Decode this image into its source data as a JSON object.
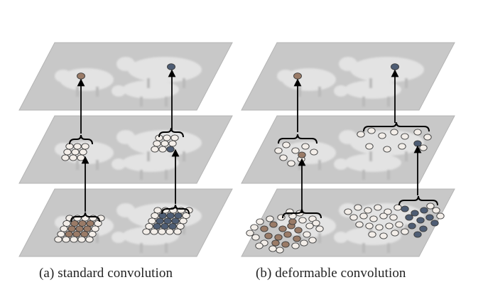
{
  "captions": {
    "standard": "(a) standard convolution",
    "deformable": "(b) deformable convolution"
  },
  "colors": {
    "plane": "#c8c8c8",
    "plane_edge": "#b4b4b4",
    "sheep": "#e6e6e6",
    "sheep_shadow": "#b8b8b8",
    "brown": "#9a7b67",
    "blue": "#4e5d74",
    "dot_fill": "#f3eee9",
    "dot_stroke": "#3a3a3a",
    "line": "#000000"
  },
  "icons": {
    "layer": "image-plane",
    "sample": "sampling-point",
    "bracket": "bracket",
    "arrow": "arrow-up"
  }
}
